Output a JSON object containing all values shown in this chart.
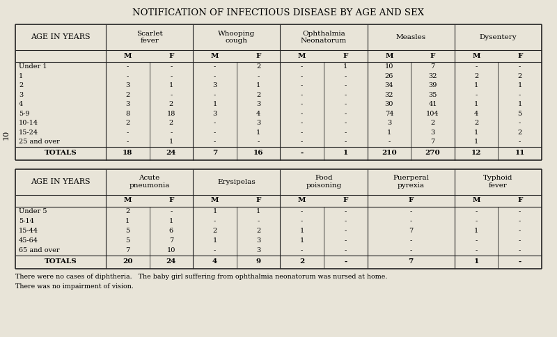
{
  "title": "NOTIFICATION OF INFECTIOUS DISEASE BY AGE AND SEX",
  "bg_color": "#e8e4d8",
  "title_fontsize": 9.5,
  "table1": {
    "col_groups": [
      "Scarlet\nfever",
      "Whooping\ncough",
      "Ophthalmia\nNeonatorum",
      "Measles",
      "Dysentery"
    ],
    "age_col_header": "AGE IN YEARS",
    "rows": [
      [
        "Under 1",
        "-",
        "-",
        "-",
        "2",
        "-",
        "1",
        "10",
        "7",
        "-",
        "-"
      ],
      [
        "1",
        "-",
        "-",
        "-",
        "-",
        "-",
        "-",
        "26",
        "32",
        "2",
        "2"
      ],
      [
        "2",
        "3",
        "1",
        "3",
        "1",
        "-",
        "-",
        "34",
        "39",
        "1",
        "1"
      ],
      [
        "3",
        "2",
        "-",
        "-",
        "2",
        "-",
        "-",
        "32",
        "35",
        "-",
        "-"
      ],
      [
        "4",
        "3",
        "2",
        "1",
        "3",
        "-",
        "-",
        "30",
        "41",
        "1",
        "1"
      ],
      [
        "5-9",
        "8",
        "18",
        "3",
        "4",
        "-",
        "-",
        "74",
        "104",
        "4",
        "5"
      ],
      [
        "10-14",
        "2",
        "2",
        "-",
        "3",
        "-",
        "-",
        "3",
        "2",
        "2",
        "-"
      ],
      [
        "15-24",
        "-",
        "-",
        "-",
        "1",
        "-",
        "-",
        "1",
        "3",
        "1",
        "2"
      ],
      [
        "25 and over",
        "-",
        "1",
        "-",
        "-",
        "-",
        "-",
        "-",
        "7",
        "1",
        "-"
      ]
    ],
    "totals": [
      "TOTALS",
      "18",
      "24",
      "7",
      "16",
      "-",
      "1",
      "210",
      "270",
      "12",
      "11"
    ]
  },
  "table2": {
    "col_groups": [
      "Acute\npneumonia",
      "Erysipelas",
      "Food\npoisoning",
      "Puerperal\npyrexia",
      "Typhoid\nfever"
    ],
    "age_col_header": "AGE IN YEARS",
    "rows": [
      [
        "Under 5",
        "2",
        "-",
        "1",
        "1",
        "-",
        "-",
        "-",
        "-",
        "-"
      ],
      [
        "5-14",
        "1",
        "1",
        "-",
        "-",
        "-",
        "-",
        "-",
        "-",
        "-"
      ],
      [
        "15-44",
        "5",
        "6",
        "2",
        "2",
        "1",
        "-",
        "7",
        "1",
        "-"
      ],
      [
        "45-64",
        "5",
        "7",
        "1",
        "3",
        "1",
        "-",
        "-",
        "-",
        "-"
      ],
      [
        "65 and over",
        "7",
        "10",
        "-",
        "3",
        "-",
        "-",
        "-",
        "-",
        "-"
      ]
    ],
    "totals": [
      "TOTALS",
      "20",
      "24",
      "4",
      "9",
      "2",
      "-",
      "7",
      "1",
      "-"
    ]
  },
  "footnote1": "There were no cases of diphtheria.   The baby girl suffering from ophthalmia neonatorum was nursed at home.",
  "footnote2": "There was no impairment of vision.",
  "page_num": "10"
}
